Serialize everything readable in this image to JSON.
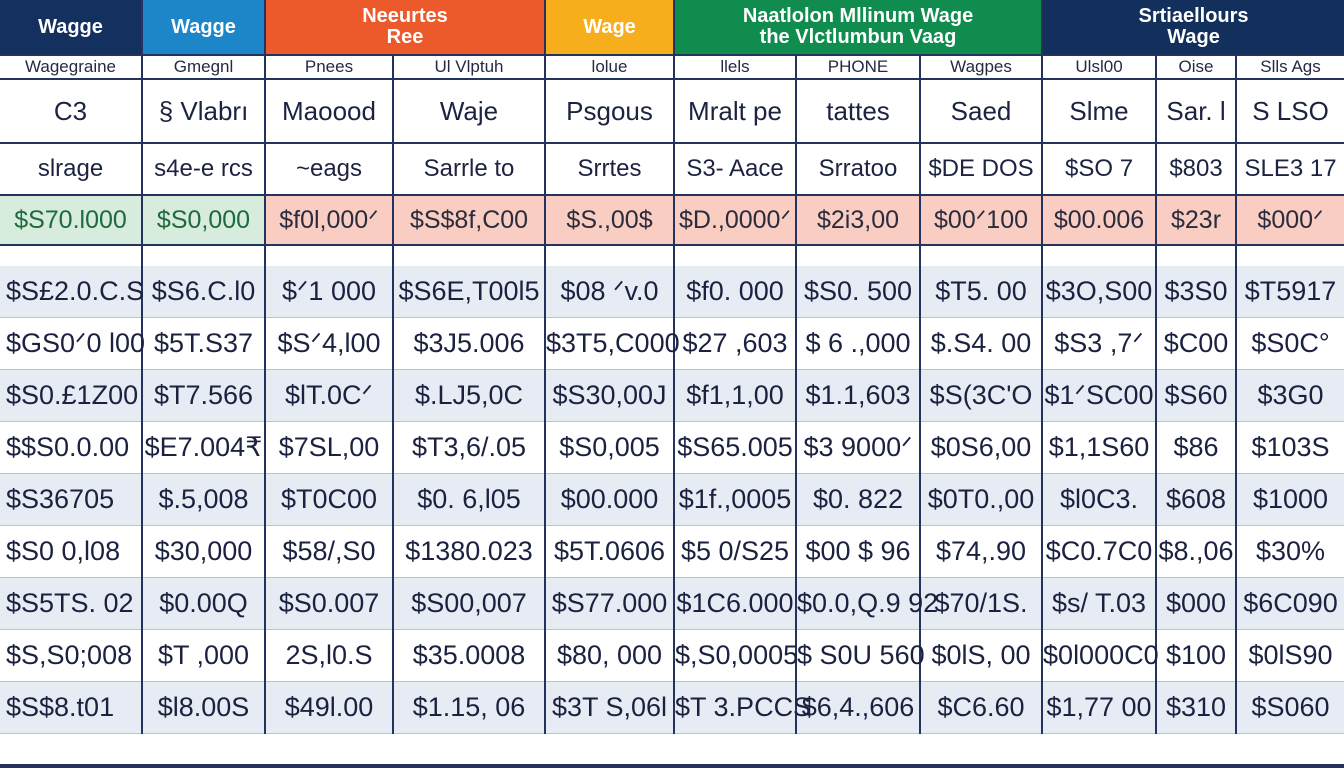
{
  "header_groups": [
    {
      "label": "Wagge",
      "color": "navy",
      "span": 1
    },
    {
      "label": "Wagge",
      "color": "blue",
      "span": 1
    },
    {
      "label": "Neeurtes\nRee",
      "color": "orange",
      "span": 2
    },
    {
      "label": "Wage",
      "color": "amber",
      "span": 1
    },
    {
      "label": "Naatlolon Mllinum Wage\nthe Vlctlumbun Vaag",
      "color": "green",
      "span": 3
    },
    {
      "label": "Srtiaellours\nWage",
      "color": "navy2",
      "span": 3
    }
  ],
  "subheaders": [
    "Wagegraine",
    "Gmegnl",
    "Pnees",
    "Ul Vlptuh",
    "lolue",
    "llels",
    "PHONE",
    "Wagpes",
    "Ulsl00",
    "Oise",
    "Slls Ags"
  ],
  "label_row_1": [
    "C3",
    "§ Vlabrı",
    "Maoood",
    "Waje",
    "Psgous",
    "Mralt pe",
    "tattes",
    "Saed",
    "Slme",
    "Sar. l",
    "S LSO"
  ],
  "label_row_2": [
    "slrage",
    "s4e-e rcs",
    "~eags",
    "Sarrle to",
    "Srrtes",
    "S3- Aace",
    "Srratoo",
    "$DE DOS",
    "$SO 7",
    "$803",
    "SLE3 17"
  ],
  "highlight_row": [
    "$S70.l000",
    "$S0,000",
    "$f0l,000ᐟ",
    "$S$8f,C00",
    "$S.,00$",
    "$D.,0000ᐟ",
    "$2i3,00",
    "$00ᐟ100",
    "$00.006",
    "$23r",
    "$000ᐟ"
  ],
  "rows": [
    [
      "$S£2.0.C.S",
      "$S6.C.l0",
      "$ᐟ1 000",
      "$S6E,T00l5",
      "$08 ᐟv.0",
      "$f0. 000",
      "$S0. 500",
      "$T5. 00",
      "$3O,S00",
      "$3S0",
      "$T5917"
    ],
    [
      "$GS0ᐟ0 l00",
      "$5T.S37",
      "$Sᐟ4,l00",
      "$3J5.006",
      "$3T5,C000",
      "$27 ,603",
      "$ 6 .,000",
      "$.S4. 00",
      "$S3 ,7ᐟ",
      "$C00",
      "$S0C°"
    ],
    [
      "$S0.£1Z00",
      "$T7.566",
      "$lT.0Cᐟ",
      "$.LJ5,0C",
      "$S30,00J",
      "$f1,1,00",
      "$1.1,603",
      "$S(3C'O",
      "$1ᐟSC00",
      "$S60",
      "$3G0"
    ],
    [
      "$$S0.0.00",
      "$E7.004₹",
      "$7SL,00",
      "$T3,6/.05",
      "$S0,005",
      "$S65.005",
      "$3 9000ᐟ",
      "$0S6,00",
      "$1,1S60",
      "$86",
      "$103S"
    ],
    [
      "$S36705",
      "$.5,008",
      "$T0C00",
      "$0. 6,l05",
      "$00.000",
      "$1f.,0005",
      "$0. 822",
      "$0T0.,00",
      "$l0C3.",
      "$608",
      "$1000"
    ],
    [
      "$S0 0,l08",
      "$30,000",
      "$58/,S0",
      "$1380.023",
      "$5T.0606",
      "$5 0/S25",
      "$00 $ 96",
      "$74,.90",
      "$C0.7C0",
      "$8.,06",
      "$30%"
    ],
    [
      "$S5TS. 02",
      "$0.00Q",
      "$S0.007",
      "$S00,007",
      "$S77.000",
      "$1C6.000",
      "$0.0,Q.9 92",
      "$70/1S.",
      "$s/ T.03",
      "$000",
      "$6C090"
    ],
    [
      "$S,S0;008",
      "$T ,000",
      "2S,l0.S",
      "$35.0008",
      "$80, 000",
      "$,S0,0005",
      "$ S0U 560",
      "$0lS, 00",
      "$0l000C0",
      "$100",
      "$0lS90"
    ],
    [
      "$S$8.t01",
      "$l8.00S",
      "$49l.00",
      "$1.15, 06",
      "$3T S,06l",
      "$T 3.PCCS",
      "$6,4.,606",
      "$C6.60",
      "$1,77 00",
      "$310",
      "$S060"
    ]
  ],
  "colors": {
    "navy": "#14305f",
    "blue": "#1c86c8",
    "orange": "#ec5a2c",
    "amber": "#f6ae1c",
    "green": "#0f8c4e",
    "highlight_green": "#d7ecdc",
    "highlight_pink": "#f9cdc1",
    "row_stripe": "#e7ebf4",
    "grid": "#24335e"
  }
}
